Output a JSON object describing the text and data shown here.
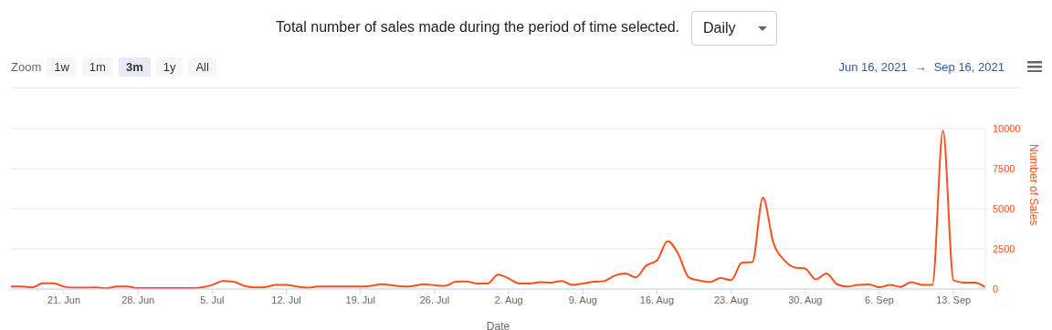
{
  "chart_data": {
    "type": "line",
    "title": "Total number of sales made during the period of time selected.",
    "xlabel": "Date",
    "ylabel": "Number of Sales",
    "annotations": [
      "Daily",
      "Zoom",
      "1w",
      "1m",
      "3m",
      "1y",
      "All",
      "Jun 16, 2021",
      "→",
      "Sep 16, 2021"
    ],
    "x": [
      "2021-06-16",
      "2021-06-17",
      "2021-06-18",
      "2021-06-19",
      "2021-06-20",
      "2021-06-21",
      "2021-06-22",
      "2021-06-23",
      "2021-06-24",
      "2021-06-25",
      "2021-06-26",
      "2021-06-27",
      "2021-06-28",
      "2021-06-29",
      "2021-06-30",
      "2021-07-01",
      "2021-07-02",
      "2021-07-03",
      "2021-07-04",
      "2021-07-05",
      "2021-07-06",
      "2021-07-07",
      "2021-07-08",
      "2021-07-09",
      "2021-07-10",
      "2021-07-11",
      "2021-07-12",
      "2021-07-13",
      "2021-07-14",
      "2021-07-15",
      "2021-07-16",
      "2021-07-17",
      "2021-07-18",
      "2021-07-19",
      "2021-07-20",
      "2021-07-21",
      "2021-07-22",
      "2021-07-23",
      "2021-07-24",
      "2021-07-25",
      "2021-07-26",
      "2021-07-27",
      "2021-07-28",
      "2021-07-29",
      "2021-07-30",
      "2021-07-31",
      "2021-08-01",
      "2021-08-02",
      "2021-08-03",
      "2021-08-04",
      "2021-08-05",
      "2021-08-06",
      "2021-08-07",
      "2021-08-08",
      "2021-08-09",
      "2021-08-10",
      "2021-08-11",
      "2021-08-12",
      "2021-08-13",
      "2021-08-14",
      "2021-08-15",
      "2021-08-16",
      "2021-08-17",
      "2021-08-18",
      "2021-08-19",
      "2021-08-20",
      "2021-08-21",
      "2021-08-22",
      "2021-08-23",
      "2021-08-24",
      "2021-08-25",
      "2021-08-26",
      "2021-08-27",
      "2021-08-28",
      "2021-08-29",
      "2021-08-30",
      "2021-08-31",
      "2021-09-01",
      "2021-09-02",
      "2021-09-03",
      "2021-09-04",
      "2021-09-05",
      "2021-09-06",
      "2021-09-07",
      "2021-09-08",
      "2021-09-09",
      "2021-09-10",
      "2021-09-11",
      "2021-09-12",
      "2021-09-13",
      "2021-09-14",
      "2021-09-15",
      "2021-09-16"
    ],
    "series": [
      {
        "color": "#f7501e",
        "values": [
          150,
          150,
          100,
          350,
          350,
          150,
          80,
          80,
          100,
          40,
          150,
          150,
          50,
          50,
          50,
          50,
          50,
          50,
          100,
          250,
          500,
          450,
          200,
          100,
          120,
          250,
          250,
          150,
          80,
          150,
          150,
          150,
          150,
          150,
          200,
          300,
          230,
          150,
          190,
          300,
          230,
          200,
          450,
          470,
          340,
          340,
          900,
          650,
          340,
          340,
          420,
          400,
          500,
          250,
          340,
          450,
          490,
          830,
          960,
          720,
          1470,
          1780,
          2990,
          2190,
          720,
          530,
          430,
          680,
          550,
          1630,
          1680,
          5690,
          2850,
          1810,
          1340,
          1270,
          590,
          960,
          300,
          150,
          260,
          280,
          110,
          250,
          130,
          430,
          260,
          260,
          9880,
          530,
          400,
          400,
          110
        ]
      }
    ],
    "xlim": [
      "2021-06-16",
      "2021-09-16"
    ],
    "xticks": [
      {
        "value": "2021-06-21",
        "label": "21. Jun"
      },
      {
        "value": "2021-06-28",
        "label": "28. Jun"
      },
      {
        "value": "2021-07-05",
        "label": "5. Jul"
      },
      {
        "value": "2021-07-12",
        "label": "12. Jul"
      },
      {
        "value": "2021-07-19",
        "label": "19. Jul"
      },
      {
        "value": "2021-07-26",
        "label": "26. Jul"
      },
      {
        "value": "2021-08-02",
        "label": "2. Aug"
      },
      {
        "value": "2021-08-09",
        "label": "9. Aug"
      },
      {
        "value": "2021-08-16",
        "label": "16. Aug"
      },
      {
        "value": "2021-08-23",
        "label": "23. Aug"
      },
      {
        "value": "2021-08-30",
        "label": "30. Aug"
      },
      {
        "value": "2021-09-06",
        "label": "6. Sep"
      },
      {
        "value": "2021-09-13",
        "label": "13. Sep"
      }
    ],
    "ylim": [
      0,
      10000
    ],
    "yticks": [
      0,
      2500,
      5000,
      7500,
      10000
    ],
    "grid": "y",
    "legend": false,
    "marker": "none",
    "line_style": "solid"
  }
}
